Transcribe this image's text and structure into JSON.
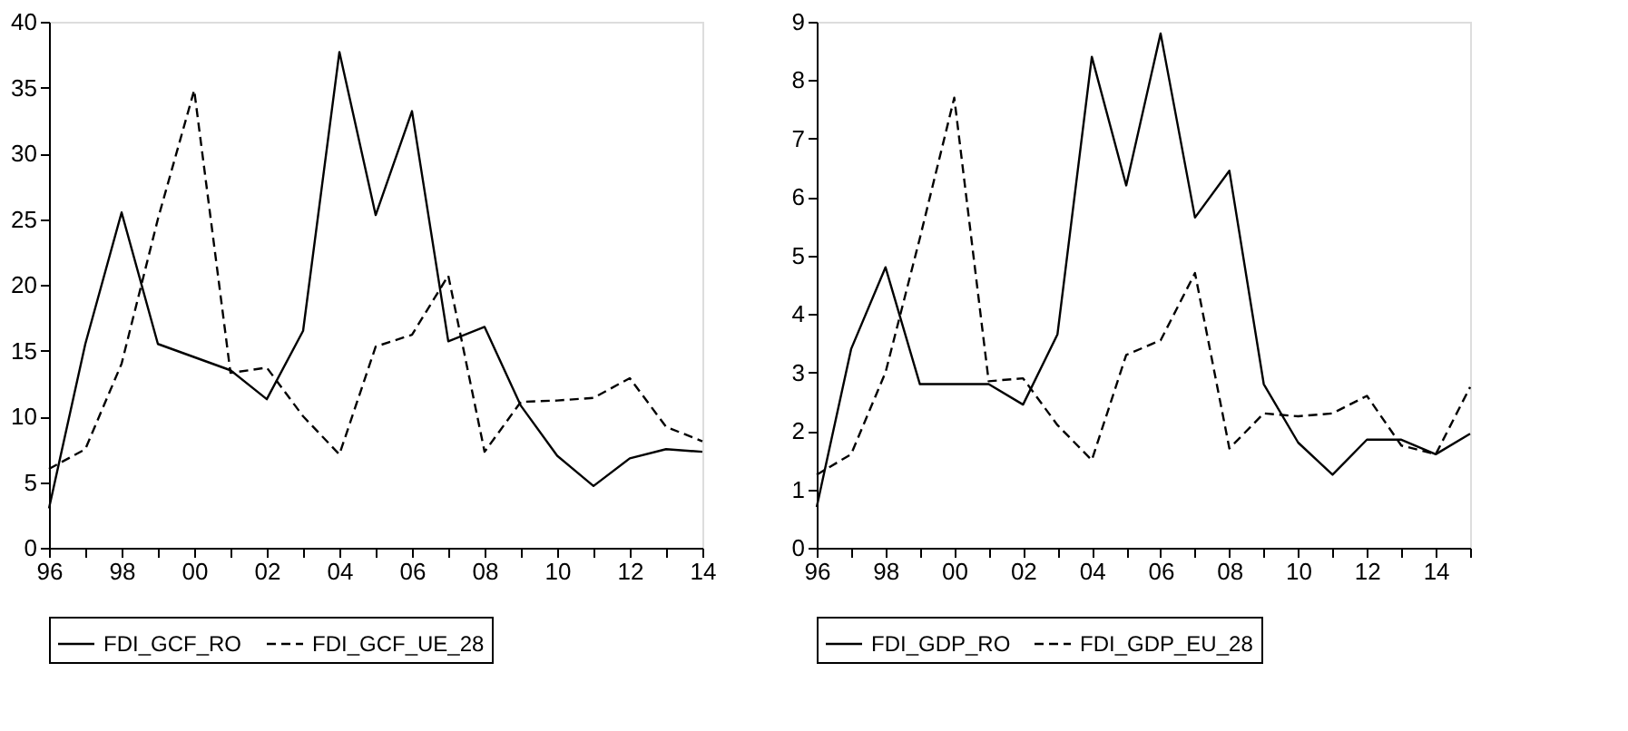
{
  "chart_data": [
    {
      "type": "line",
      "categories": [
        "96",
        null,
        "98",
        null,
        "00",
        null,
        "02",
        null,
        "04",
        null,
        "06",
        null,
        "08",
        null,
        "10",
        null,
        "12",
        null,
        "14"
      ],
      "ylim": [
        0,
        40
      ],
      "yticks": [
        0,
        5,
        10,
        15,
        20,
        25,
        30,
        35,
        40
      ],
      "grid": false,
      "legend": "bottom",
      "series": [
        {
          "name": "FDI_GCF_RO",
          "color": "#000000",
          "line_style": "solid",
          "values": [
            3,
            15.5,
            25.5,
            15.5,
            14.5,
            13.5,
            11.3,
            16.5,
            37.7,
            25.3,
            33.2,
            15.7,
            16.8,
            10.8,
            7,
            4.7,
            6.8,
            7.5,
            7.3
          ]
        },
        {
          "name": "FDI_GCF_UE_28",
          "color": "#000000",
          "line_style": "dashed",
          "values": [
            6,
            7.5,
            14,
            25,
            34.8,
            13.3,
            13.7,
            10,
            7.1,
            15.3,
            16.2,
            20.7,
            7.3,
            11.1,
            11.2,
            11.4,
            12.9,
            9.2,
            8.1
          ]
        }
      ]
    },
    {
      "type": "line",
      "categories": [
        "96",
        null,
        "98",
        null,
        "00",
        null,
        "02",
        null,
        "04",
        null,
        "06",
        null,
        "08",
        null,
        "10",
        null,
        "12",
        null,
        "14",
        null
      ],
      "ylim": [
        0,
        9
      ],
      "yticks": [
        0,
        1,
        2,
        3,
        4,
        5,
        6,
        7,
        8,
        9
      ],
      "grid": false,
      "legend": "bottom",
      "series": [
        {
          "name": "FDI_GDP_RO",
          "color": "#000000",
          "line_style": "solid",
          "values": [
            0.7,
            3.4,
            4.8,
            2.8,
            2.8,
            2.8,
            2.45,
            3.65,
            8.4,
            6.2,
            8.8,
            5.65,
            6.45,
            2.8,
            1.8,
            1.25,
            1.85,
            1.85,
            1.6,
            1.95
          ]
        },
        {
          "name": "FDI_GDP_EU_28",
          "color": "#000000",
          "line_style": "dashed",
          "values": [
            1.25,
            1.6,
            3.0,
            5.3,
            7.7,
            2.85,
            2.9,
            2.1,
            1.5,
            3.3,
            3.55,
            4.7,
            1.7,
            2.3,
            2.25,
            2.3,
            2.6,
            1.75,
            1.6,
            2.75
          ]
        }
      ]
    }
  ]
}
